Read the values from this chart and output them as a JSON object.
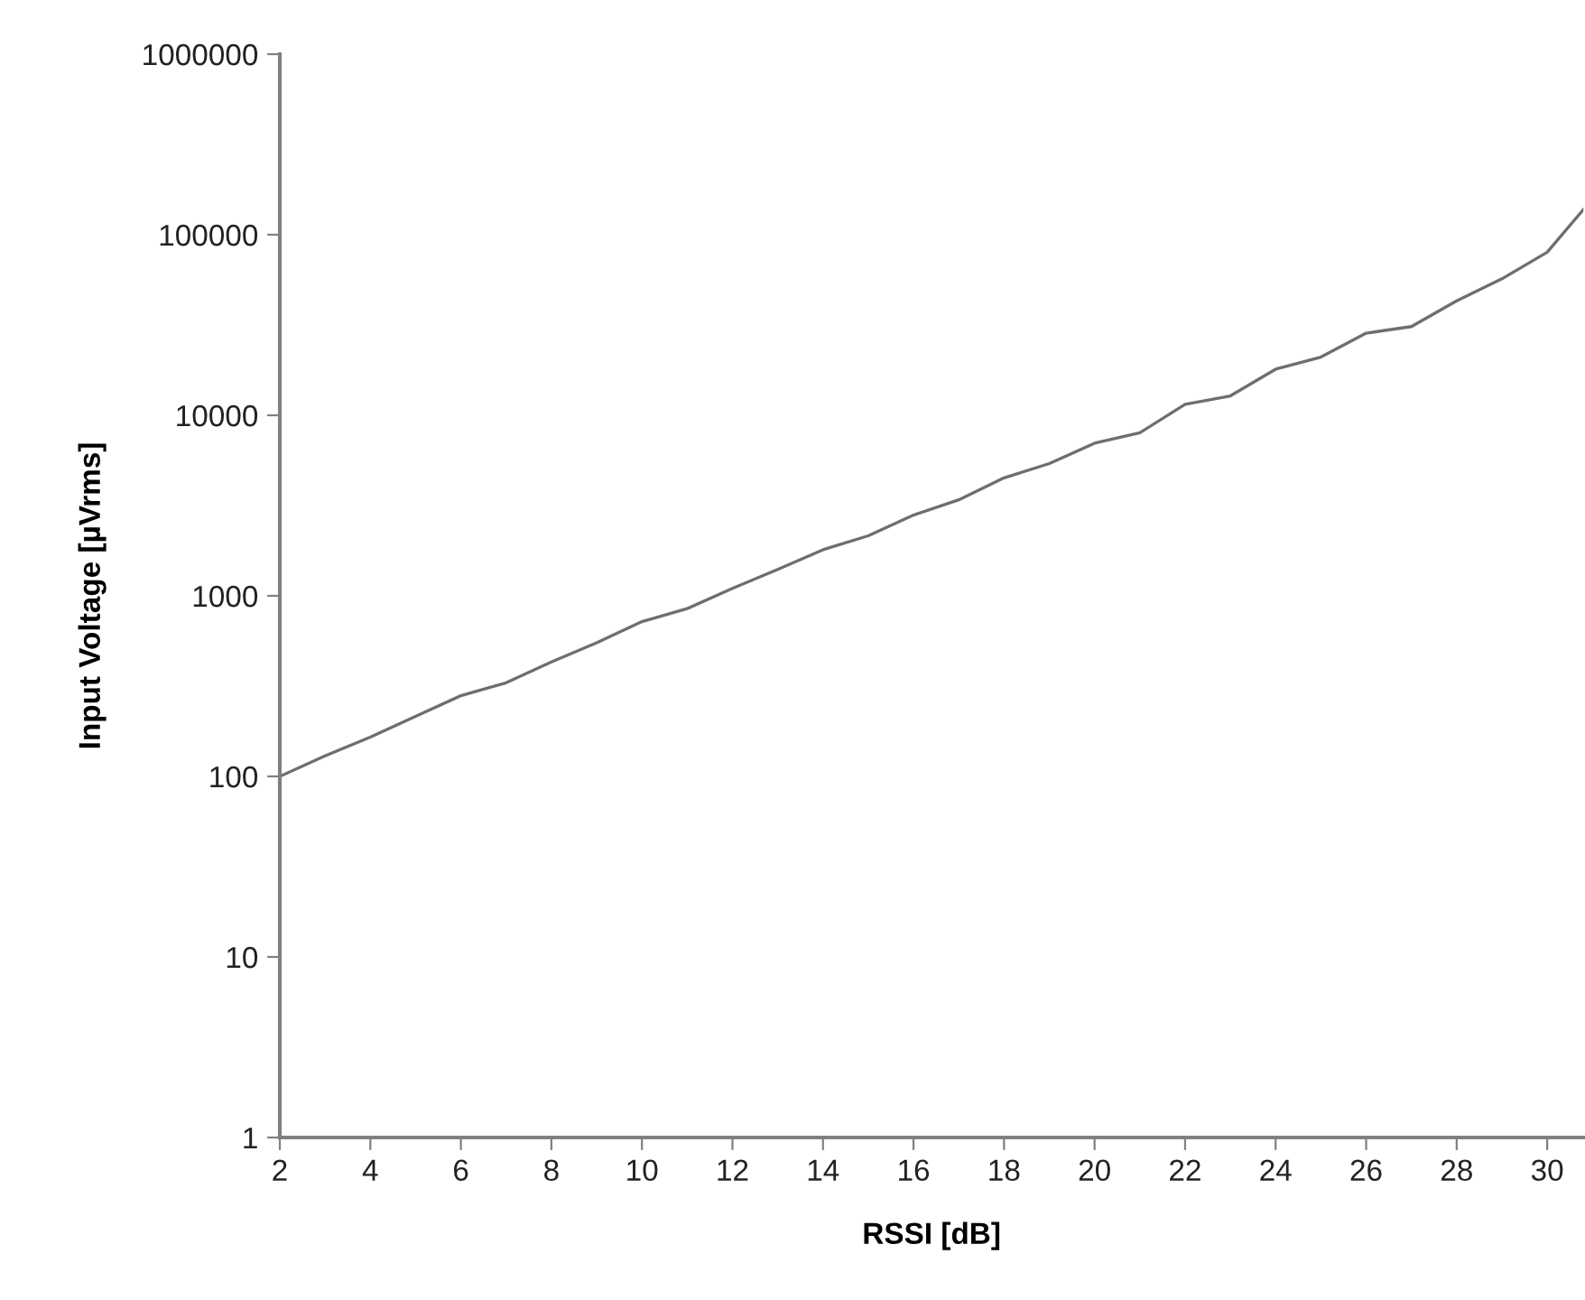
{
  "chart_data": {
    "type": "line",
    "xlabel": "RSSI [dB]",
    "ylabel": "Input Voltage [µVrms]",
    "x": [
      2,
      3,
      4,
      5,
      6,
      7,
      8,
      9,
      10,
      11,
      12,
      13,
      14,
      15,
      16,
      17,
      18,
      19,
      20,
      21,
      22,
      23,
      24,
      25,
      26,
      27,
      28,
      29,
      30,
      30.8
    ],
    "series": [
      {
        "color": "#6e6e6e",
        "values": [
          100,
          130,
          165,
          215,
          280,
          330,
          430,
          550,
          720,
          850,
          1100,
          1400,
          1800,
          2150,
          2800,
          3400,
          4500,
          5400,
          7000,
          8000,
          11500,
          12800,
          18000,
          21000,
          28500,
          31000,
          43000,
          57000,
          80000,
          138000
        ]
      }
    ],
    "log": "y",
    "xlim": [
      2,
      30.8
    ],
    "xticks": [
      2,
      4,
      6,
      8,
      10,
      12,
      14,
      16,
      18,
      20,
      22,
      24,
      26,
      28,
      30
    ],
    "ylim": [
      1,
      1000000
    ],
    "yticks": [
      1,
      10,
      100,
      1000,
      10000,
      100000,
      1000000
    ],
    "grid": false,
    "legend": false,
    "marker": "none",
    "line_style": "solid"
  }
}
